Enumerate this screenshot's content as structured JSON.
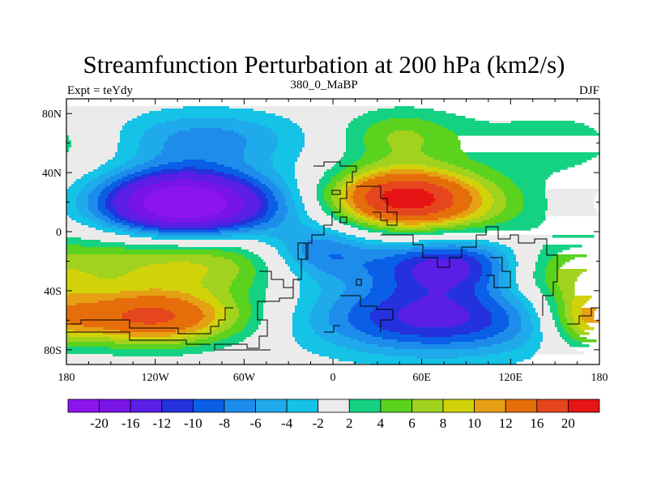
{
  "chart_data": {
    "type": "heatmap",
    "title": "Streamfunction Perturbation at 200 hPa (km2/s)",
    "left_label": "Expt = teYdy",
    "center_label": "380_0_MaBP",
    "right_label": "DJF",
    "x_range": [
      -180,
      180
    ],
    "y_range": [
      -90,
      90
    ],
    "x_ticks": [
      {
        "value": -180,
        "label": "180"
      },
      {
        "value": -120,
        "label": "120W"
      },
      {
        "value": -60,
        "label": "60W"
      },
      {
        "value": 0,
        "label": "0"
      },
      {
        "value": 60,
        "label": "60E"
      },
      {
        "value": 120,
        "label": "120E"
      },
      {
        "value": 180,
        "label": "180"
      }
    ],
    "y_ticks": [
      {
        "value": 80,
        "label": "80N"
      },
      {
        "value": 40,
        "label": "40N"
      },
      {
        "value": 0,
        "label": "0"
      },
      {
        "value": -40,
        "label": "40S"
      },
      {
        "value": -80,
        "label": "80S"
      }
    ],
    "colorbar": {
      "labels": [
        "-20",
        "-16",
        "-12",
        "-10",
        "-8",
        "-6",
        "-4",
        "-2",
        "2",
        "4",
        "6",
        "8",
        "10",
        "12",
        "16",
        "20"
      ],
      "colors": [
        "#8c14ec",
        "#7814e6",
        "#5a1ee6",
        "#2332dc",
        "#0a5fe6",
        "#1e8ceb",
        "#1eaaeb",
        "#14c3e6",
        "#ebebeb",
        "#14d282",
        "#5ad21e",
        "#a0d21e",
        "#d2d20a",
        "#e6a014",
        "#e66e0a",
        "#e6461e",
        "#e61414"
      ]
    },
    "field_features": [
      {
        "type": "low",
        "lon": -95,
        "lat": 18,
        "amp": -22,
        "sx": 42,
        "sy": 16
      },
      {
        "type": "low",
        "lon": -115,
        "lat": 22,
        "amp": -5,
        "sx": 30,
        "sy": 14
      },
      {
        "type": "low",
        "lon": -90,
        "lat": 63,
        "amp": -7,
        "sx": 50,
        "sy": 14
      },
      {
        "type": "high",
        "lon": -125,
        "lat": -58,
        "amp": 17,
        "sx": 45,
        "sy": 13
      },
      {
        "type": "high",
        "lon": -95,
        "lat": -20,
        "amp": 9,
        "sx": 65,
        "sy": 16
      },
      {
        "type": "high",
        "lon": 45,
        "lat": 23,
        "amp": 19,
        "sx": 33,
        "sy": 14
      },
      {
        "type": "high",
        "lon": 85,
        "lat": 18,
        "amp": 6,
        "sx": 40,
        "sy": 16
      },
      {
        "type": "high",
        "lon": 45,
        "lat": 65,
        "amp": 6,
        "sx": 30,
        "sy": 13
      },
      {
        "type": "high",
        "lon": 160,
        "lat": 60,
        "amp": 4,
        "sx": 50,
        "sy": 15
      },
      {
        "type": "low",
        "lon": -10,
        "lat": -15,
        "amp": -10,
        "sx": 28,
        "sy": 14
      },
      {
        "type": "low",
        "lon": 80,
        "lat": -22,
        "amp": -13,
        "sx": 38,
        "sy": 13
      },
      {
        "type": "low",
        "lon": 70,
        "lat": -58,
        "amp": -13,
        "sx": 62,
        "sy": 18
      },
      {
        "type": "high",
        "lon": 150,
        "lat": -30,
        "amp": 7,
        "sx": 35,
        "sy": 15
      },
      {
        "type": "high",
        "lon": 170,
        "lat": -60,
        "amp": 7,
        "sx": 20,
        "sy": 15
      }
    ]
  }
}
